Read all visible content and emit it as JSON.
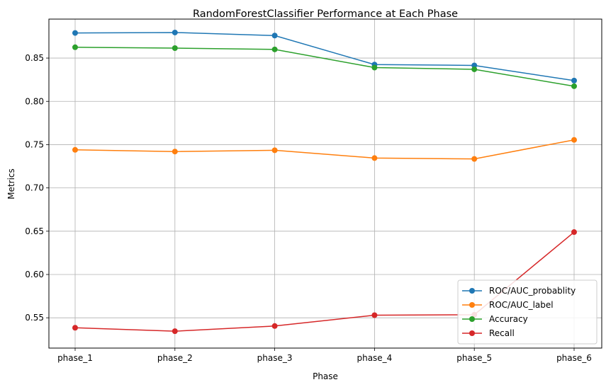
{
  "chart_data": {
    "type": "line",
    "title": "RandomForestClassifier Performance at Each Phase",
    "xlabel": "Phase",
    "ylabel": "Metrics",
    "categories": [
      "phase_1",
      "phase_2",
      "phase_3",
      "phase_4",
      "phase_5",
      "phase_6"
    ],
    "ylim": [
      0.515,
      0.895
    ],
    "yticks": [
      0.55,
      0.6,
      0.65,
      0.7,
      0.75,
      0.8,
      0.85
    ],
    "ytick_labels": [
      "0.55",
      "0.60",
      "0.65",
      "0.70",
      "0.75",
      "0.80",
      "0.85"
    ],
    "grid": true,
    "legend_position": "lower-right",
    "series": [
      {
        "name": "ROC/AUC_probablity",
        "color": "#1f77b4",
        "values": [
          0.879,
          0.8795,
          0.876,
          0.8425,
          0.8415,
          0.824
        ]
      },
      {
        "name": "ROC/AUC_label",
        "color": "#ff7f0e",
        "values": [
          0.744,
          0.742,
          0.7435,
          0.7345,
          0.7335,
          0.7555
        ]
      },
      {
        "name": "Accuracy",
        "color": "#2ca02c",
        "values": [
          0.8625,
          0.8615,
          0.86,
          0.839,
          0.837,
          0.8175
        ]
      },
      {
        "name": "Recall",
        "color": "#d62728",
        "values": [
          0.5385,
          0.5345,
          0.5405,
          0.553,
          0.5535,
          0.649
        ]
      }
    ]
  }
}
